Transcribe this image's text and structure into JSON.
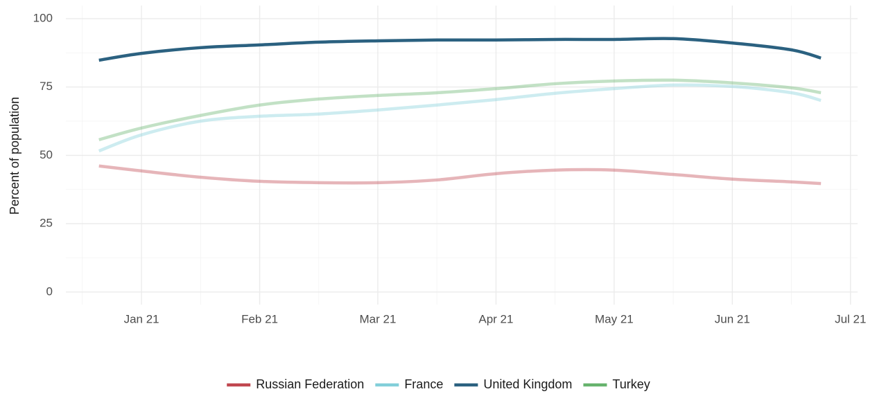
{
  "chart_data": {
    "type": "line",
    "y_label": "Percent of population",
    "x": [
      0.64,
      1,
      1.5,
      2,
      2.5,
      3,
      3.5,
      4,
      4.5,
      5,
      5.5,
      6,
      6.5,
      6.75
    ],
    "xlim": [
      0.36,
      7.06
    ],
    "xticks": [
      {
        "value": 1,
        "label": "Jan 21"
      },
      {
        "value": 2,
        "label": "Feb 21"
      },
      {
        "value": 3,
        "label": "Mar 21"
      },
      {
        "value": 4,
        "label": "Apr 21"
      },
      {
        "value": 5,
        "label": "May 21"
      },
      {
        "value": 6,
        "label": "Jun 21"
      },
      {
        "value": 7,
        "label": "Jul 21"
      }
    ],
    "ylim": [
      -4.6,
      104.8
    ],
    "yticks": [
      0,
      25,
      50,
      75,
      100
    ],
    "grid": true,
    "legend": "bottom",
    "series": [
      {
        "name": "Russian Federation",
        "color": "#c0474f",
        "opacity": 0.4,
        "values": [
          46.1,
          44.3,
          42,
          40.5,
          40,
          40,
          41,
          43.3,
          44.6,
          44.6,
          43,
          41.3,
          40.3,
          39.7
        ]
      },
      {
        "name": "France",
        "color": "#82cfd9",
        "opacity": 0.4,
        "values": [
          51.6,
          57.5,
          62.5,
          64.3,
          65.1,
          66.6,
          68.4,
          70.4,
          72.7,
          74.4,
          75.7,
          75.2,
          72.9,
          70.1
        ]
      },
      {
        "name": "United Kingdom",
        "color": "#2b6180",
        "opacity": 1,
        "values": [
          84.8,
          87.3,
          89.4,
          90.4,
          91.4,
          91.9,
          92.2,
          92.2,
          92.4,
          92.4,
          92.7,
          91.1,
          88.6,
          85.6
        ]
      },
      {
        "name": "Turkey",
        "color": "#66b36d",
        "opacity": 0.4,
        "values": [
          55.7,
          60,
          64.6,
          68.4,
          70.6,
          71.9,
          72.9,
          74.4,
          76.2,
          77.2,
          77.5,
          76.5,
          74.7,
          72.9
        ]
      }
    ]
  }
}
